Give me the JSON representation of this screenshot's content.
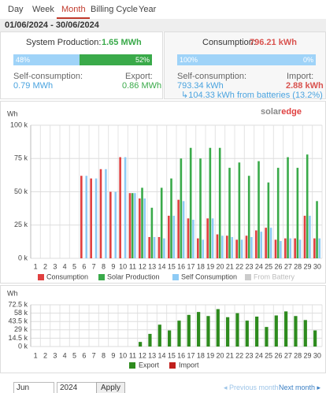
{
  "tabs": [
    "Day",
    "Week",
    "Month",
    "Billing Cycle",
    "Year"
  ],
  "active_tab": 2,
  "date_range": "01/06/2024 - 30/06/2024",
  "production": {
    "label": "System Production:",
    "value": "1.65 MWh",
    "bar": [
      {
        "value": 48,
        "label": "48%"
      },
      {
        "value": 52,
        "label": "52%"
      }
    ],
    "left_label": "Self-consumption:",
    "left_value": "0.79 MWh",
    "right_label": "Export:",
    "right_value": "0.86 MWh"
  },
  "consumption": {
    "label": "Consumption:",
    "value": "796.21 kWh",
    "bar": [
      {
        "value": 100,
        "label": "100%"
      },
      {
        "value": 0,
        "label": "0%"
      }
    ],
    "left_label": "Self-consumption:",
    "left_value": "793.34 kWh",
    "right_label": "Import:",
    "right_value": "2.88 kWh",
    "note": "↳104.33 kWh from batteries (13.2%)"
  },
  "logo": [
    "solar",
    "edge"
  ],
  "chart_data": [
    {
      "type": "bar",
      "y_label": "Wh",
      "categories": [
        "1",
        "2",
        "3",
        "4",
        "5",
        "6",
        "7",
        "8",
        "9",
        "10",
        "11",
        "12",
        "13",
        "14",
        "15",
        "16",
        "17",
        "18",
        "19",
        "20",
        "21",
        "22",
        "23",
        "24",
        "25",
        "26",
        "27",
        "28",
        "29",
        "30"
      ],
      "ylim": [
        0,
        100000
      ],
      "yticks": [
        {
          "value": 0,
          "label": "0 k"
        },
        {
          "value": 25000,
          "label": "25 k"
        },
        {
          "value": 50000,
          "label": "50 k"
        },
        {
          "value": 75000,
          "label": "75 k"
        },
        {
          "value": 100000,
          "label": "100 k"
        }
      ],
      "grid": true,
      "series": [
        {
          "name": "Consumption",
          "color": "#e04040",
          "values": [
            0,
            0,
            0,
            0,
            0,
            62000,
            60000,
            67000,
            50000,
            76000,
            49000,
            45000,
            16000,
            16000,
            32000,
            44000,
            30000,
            15000,
            30000,
            18000,
            17000,
            14000,
            17000,
            21000,
            23000,
            14000,
            15000,
            15000,
            32000,
            15000
          ]
        },
        {
          "name": "Solar Production",
          "color": "#3aaa4a",
          "values": [
            0,
            0,
            0,
            0,
            0,
            0,
            0,
            0,
            0,
            0,
            49000,
            53000,
            38000,
            53000,
            60000,
            75000,
            83000,
            75000,
            83000,
            83000,
            68000,
            72000,
            62000,
            73000,
            57000,
            68000,
            76000,
            68000,
            78000,
            43000
          ]
        },
        {
          "name": "Self Consumption",
          "color": "#8ecbf5",
          "values": [
            0,
            0,
            0,
            0,
            0,
            62000,
            60000,
            67000,
            50000,
            76000,
            49000,
            45000,
            16000,
            15000,
            32000,
            43000,
            29000,
            14000,
            30000,
            17000,
            16000,
            14000,
            16000,
            20000,
            23000,
            13000,
            15000,
            14000,
            32000,
            15000
          ]
        },
        {
          "name": "From Battery",
          "color": "#cccccc",
          "visible": false
        }
      ]
    },
    {
      "type": "bar",
      "y_label": "Wh",
      "categories": [
        "1",
        "2",
        "3",
        "4",
        "5",
        "6",
        "7",
        "8",
        "9",
        "10",
        "11",
        "12",
        "13",
        "14",
        "15",
        "16",
        "17",
        "18",
        "19",
        "20",
        "21",
        "22",
        "23",
        "24",
        "25",
        "26",
        "27",
        "28",
        "29",
        "30"
      ],
      "ylim": [
        0,
        72500
      ],
      "yticks": [
        {
          "value": 0,
          "label": "0 k"
        },
        {
          "value": 14500,
          "label": "14.5 k"
        },
        {
          "value": 29000,
          "label": "29 k"
        },
        {
          "value": 43500,
          "label": "43.5 k"
        },
        {
          "value": 58000,
          "label": "58 k"
        },
        {
          "value": 72500,
          "label": "72.5 k"
        }
      ],
      "grid": true,
      "series": [
        {
          "name": "Export",
          "color": "#2e8b1e",
          "values": [
            0,
            0,
            0,
            0,
            0,
            0,
            0,
            0,
            0,
            0,
            0,
            8000,
            22000,
            38000,
            28000,
            45000,
            55000,
            60000,
            53000,
            65000,
            51000,
            58000,
            45000,
            52000,
            34000,
            54000,
            61000,
            53000,
            46000,
            28000
          ]
        },
        {
          "name": "Import",
          "color": "#c0201c",
          "values": [
            0,
            0,
            0,
            0,
            0,
            0,
            0,
            0,
            0,
            0,
            0,
            0,
            0,
            0,
            0,
            0,
            0,
            0,
            0,
            0,
            0,
            0,
            0,
            0,
            0,
            0,
            0,
            0,
            0,
            0
          ]
        }
      ]
    }
  ],
  "controls": {
    "month": "Jun",
    "year": "2024",
    "apply": "Apply",
    "prev": "◂ Previous month",
    "next": "Next month ▸"
  }
}
